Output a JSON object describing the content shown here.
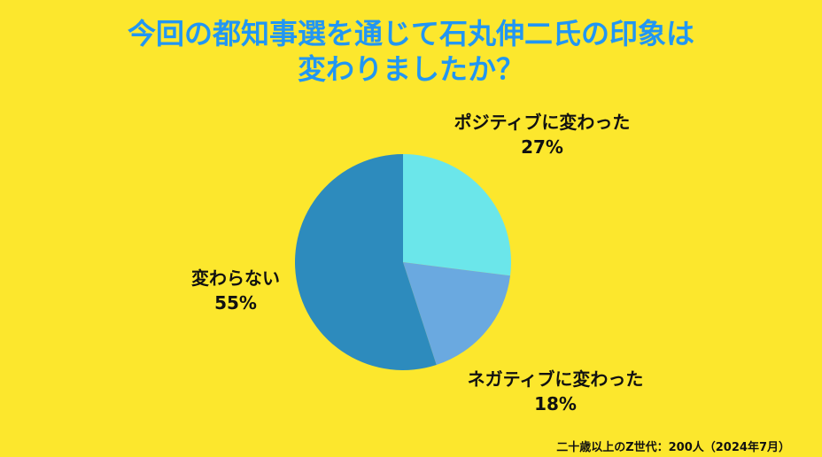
{
  "title_lines": [
    "今回の都知事選を通じて石丸伸二氏の印象は",
    "変わりましたか？"
  ],
  "footnote": "二十歳以上のZ世代：200人（2024年7月）",
  "chart_data": {
    "type": "pie",
    "title": "今回の都知事選を通じて石丸伸二氏の印象は変わりましたか？",
    "slices": [
      {
        "label": "ポジティブに変わった",
        "value": 27,
        "value_label": "27%",
        "color": "#6be6ea"
      },
      {
        "label": "ネガティブに変わった",
        "value": 18,
        "value_label": "18%",
        "color": "#6aa9e0"
      },
      {
        "label": "変わらない",
        "value": 55,
        "value_label": "55%",
        "color": "#2d8bbd"
      }
    ],
    "start_angle": "12 o'clock",
    "direction": "clockwise",
    "legend": "none"
  }
}
